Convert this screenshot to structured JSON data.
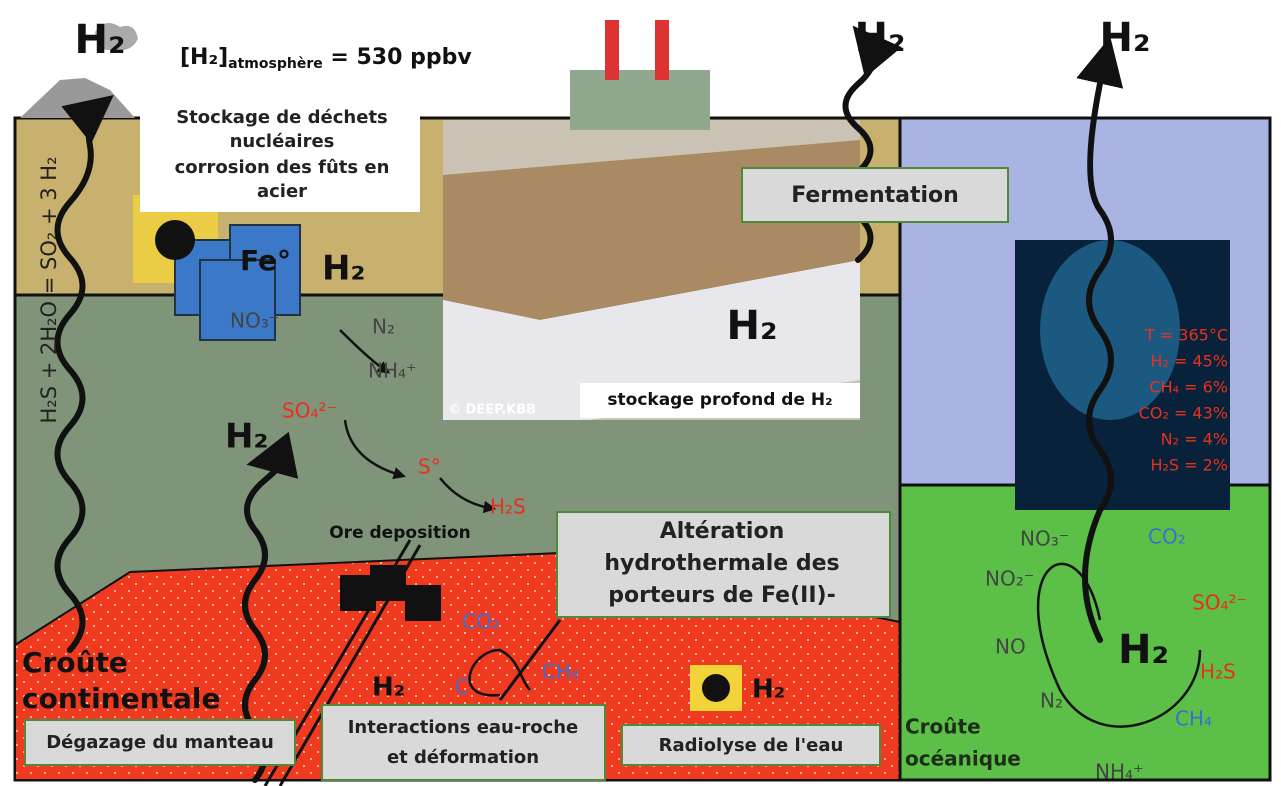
{
  "atmosphere": {
    "prefix": "[H₂]",
    "subscript": "atmosphère",
    "suffix": " = 530 ppbv"
  },
  "top_h2": [
    "H₂",
    "H₂",
    "H₂"
  ],
  "equation": "H₂S + 2H₂O = SO₂ + 3 H₂",
  "nuclear_storage": {
    "lines": [
      "Stockage de déchets",
      "nucléaires",
      "corrosion des fûts en",
      "acier"
    ],
    "iron": "Fe°",
    "h2": "H₂",
    "nitrate": "NO₃⁻",
    "products": [
      "N₂",
      "NH₄⁺"
    ]
  },
  "deep_storage": {
    "h2": "H₂",
    "caption": "stockage profond de H₂",
    "credit": "© DEEP.KBB"
  },
  "fermentation": "Fermentation",
  "sulfur": {
    "h2": "H₂",
    "sulfate": "SO₄²⁻",
    "sulfur": "S°",
    "sulfide": "H₂S",
    "ore": "Ore deposition"
  },
  "alteration": [
    "Altération",
    "hydrothermale des",
    "porteurs de Fe(II)-"
  ],
  "carbon": {
    "co2": "CO₂",
    "c": "C",
    "ch4": "CH₄",
    "h2": "H₂"
  },
  "radiolysis": {
    "h2": "H₂",
    "box": "Radiolyse de l'eau"
  },
  "continental": {
    "lines": [
      "Croûte",
      "continentale"
    ],
    "mantle": "Dégazage du manteau",
    "interactions": [
      "Interactions eau-roche",
      "et déformation"
    ]
  },
  "vent": [
    "T = 365°C",
    "H₂ = 45%",
    "CH₄ = 6%",
    "CO₂ = 43%",
    "N₂ = 4%",
    "H₂S = 2%"
  ],
  "oceanic": {
    "lines": [
      "Croûte",
      "océanique"
    ],
    "species": {
      "no3": "NO₃⁻",
      "co2": "CO₂",
      "no2": "NO₂⁻",
      "so4": "SO₄²⁻",
      "no": "NO",
      "h2": "H₂",
      "h2s": "H₂S",
      "n2": "N₂",
      "ch4": "CH₄",
      "nh4": "NH₄⁺"
    }
  }
}
